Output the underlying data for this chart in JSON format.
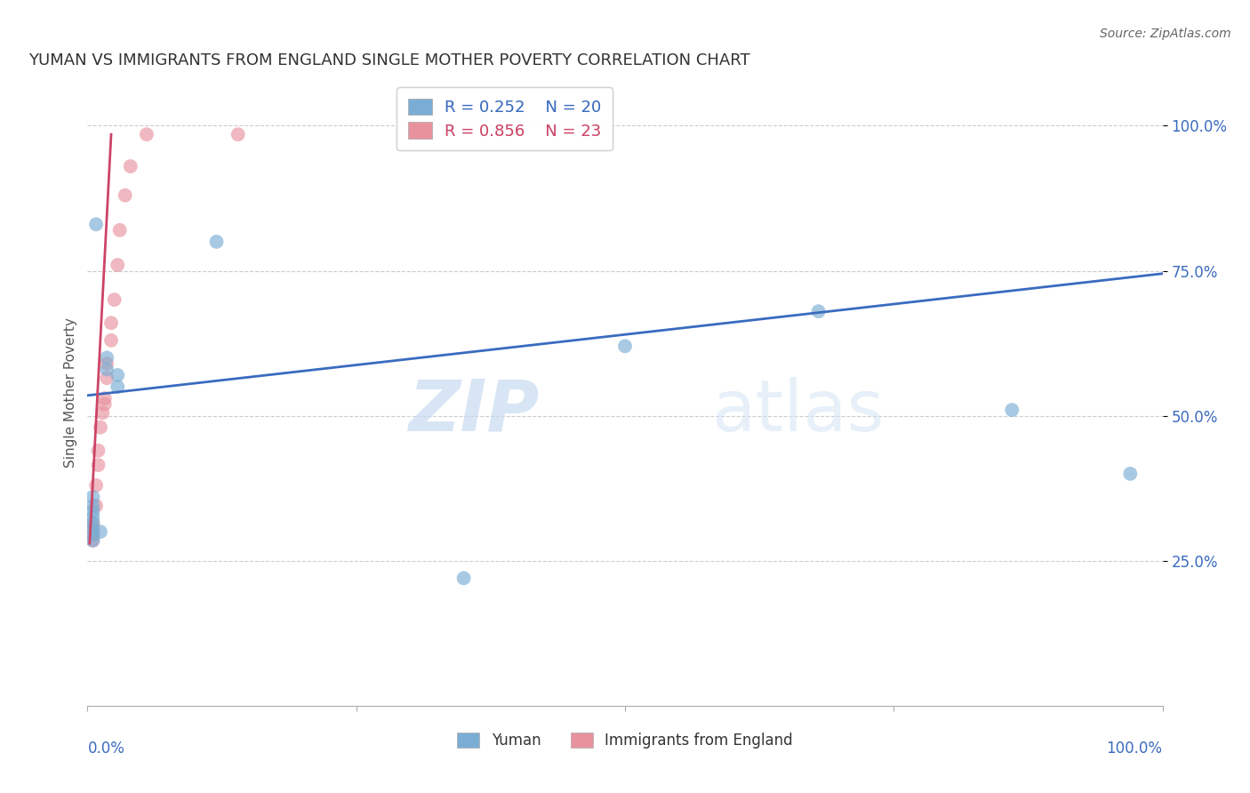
{
  "title": "YUMAN VS IMMIGRANTS FROM ENGLAND SINGLE MOTHER POVERTY CORRELATION CHART",
  "source": "Source: ZipAtlas.com",
  "ylabel": "Single Mother Poverty",
  "legend_r_blue": "R = 0.252",
  "legend_n_blue": "N = 20",
  "legend_r_pink": "R = 0.856",
  "legend_n_pink": "N = 23",
  "blue_color": "#7aadd4",
  "pink_color": "#e8929e",
  "blue_line_color": "#3a6bbf",
  "pink_line_color": "#cc4466",
  "watermark_zip": "ZIP",
  "watermark_atlas": "atlas",
  "blue_scatter_x": [
    0.005,
    0.005,
    0.005,
    0.005,
    0.005,
    0.005,
    0.005,
    0.005,
    0.008,
    0.012,
    0.018,
    0.018,
    0.028,
    0.028,
    0.12,
    0.35,
    0.5,
    0.68,
    0.86,
    0.97
  ],
  "blue_scatter_y": [
    0.285,
    0.295,
    0.305,
    0.315,
    0.325,
    0.335,
    0.345,
    0.36,
    0.83,
    0.3,
    0.58,
    0.6,
    0.57,
    0.55,
    0.8,
    0.22,
    0.62,
    0.68,
    0.51,
    0.4
  ],
  "pink_scatter_x": [
    0.005,
    0.005,
    0.005,
    0.005,
    0.008,
    0.008,
    0.01,
    0.01,
    0.012,
    0.014,
    0.016,
    0.016,
    0.018,
    0.018,
    0.022,
    0.022,
    0.025,
    0.028,
    0.03,
    0.035,
    0.04,
    0.055,
    0.14
  ],
  "pink_scatter_y": [
    0.285,
    0.295,
    0.305,
    0.315,
    0.345,
    0.38,
    0.415,
    0.44,
    0.48,
    0.505,
    0.52,
    0.53,
    0.565,
    0.59,
    0.63,
    0.66,
    0.7,
    0.76,
    0.82,
    0.88,
    0.93,
    0.985,
    0.985
  ],
  "blue_line_x": [
    0.0,
    1.0
  ],
  "blue_line_y": [
    0.535,
    0.745
  ],
  "pink_line_x": [
    0.002,
    0.022
  ],
  "pink_line_y": [
    0.28,
    0.985
  ],
  "xlim": [
    0.0,
    1.0
  ],
  "ylim": [
    0.0,
    1.08
  ],
  "ytick_vals": [
    0.25,
    0.5,
    0.75,
    1.0
  ],
  "ytick_labels": [
    "25.0%",
    "50.0%",
    "75.0%",
    "100.0%"
  ],
  "xtick_minor": [
    0.25,
    0.5,
    0.75
  ],
  "grid_color": "#cccccc",
  "bg_color": "#ffffff",
  "title_color": "#333333",
  "source_color": "#666666",
  "axis_label_color": "#555555",
  "tick_label_color": "#3a6bbf"
}
